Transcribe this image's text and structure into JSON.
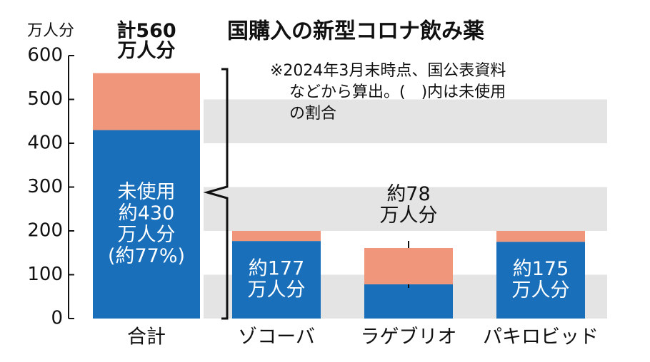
{
  "chart_data": {
    "type": "stacked_bar",
    "title": "国購入の新型コロナ飲み薬",
    "note": "※2024年3月末時点、国公表資料\nなどから算出。(　)内は未使用\nの割合",
    "y_label": "万人分",
    "annotations": [
      "計560\n万人分"
    ],
    "categories": [
      "合計",
      "ゾコーバ",
      "ラゲブリオ",
      "パキロビッド"
    ],
    "series": [
      {
        "color": "#1a6fba",
        "values": [
          430,
          177,
          78,
          175
        ],
        "value_labels": [
          "未使用\n約430\n万人分\n(約77%)",
          "約177\n万人分",
          "約78\n万人分",
          "約175\n万人分"
        ]
      },
      {
        "color": "#f0967a",
        "values": [
          130,
          23,
          83,
          25
        ]
      }
    ],
    "ylim": [
      0,
      600
    ],
    "yticks": [
      0,
      100,
      200,
      300,
      400,
      500,
      600
    ],
    "grid": "bands"
  }
}
